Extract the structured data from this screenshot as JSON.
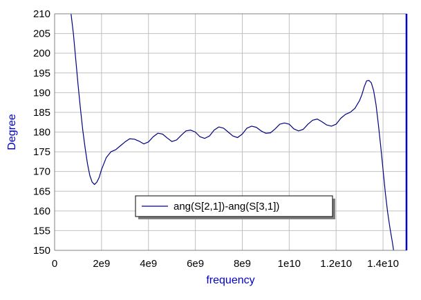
{
  "chart_data": {
    "type": "line",
    "xlabel": "frequency",
    "ylabel": "Degree",
    "xlim": [
      0,
      15000000000
    ],
    "ylim": [
      150,
      210
    ],
    "x_ticks": [
      {
        "value": 0,
        "label": "0"
      },
      {
        "value": 2000000000,
        "label": "2e9"
      },
      {
        "value": 4000000000,
        "label": "4e9"
      },
      {
        "value": 6000000000,
        "label": "6e9"
      },
      {
        "value": 8000000000,
        "label": "8e9"
      },
      {
        "value": 10000000000,
        "label": "1e10"
      },
      {
        "value": 12000000000,
        "label": "1.2e10"
      },
      {
        "value": 14000000000,
        "label": "1.4e10"
      }
    ],
    "y_ticks": [
      {
        "value": 150,
        "label": "150"
      },
      {
        "value": 155,
        "label": "155"
      },
      {
        "value": 160,
        "label": "160"
      },
      {
        "value": 165,
        "label": "165"
      },
      {
        "value": 170,
        "label": "170"
      },
      {
        "value": 175,
        "label": "175"
      },
      {
        "value": 180,
        "label": "180"
      },
      {
        "value": 185,
        "label": "185"
      },
      {
        "value": 190,
        "label": "190"
      },
      {
        "value": 195,
        "label": "195"
      },
      {
        "value": 200,
        "label": "200"
      },
      {
        "value": 205,
        "label": "205"
      },
      {
        "value": 210,
        "label": "210"
      }
    ],
    "grid": true,
    "legend_position": "lower-center",
    "series": [
      {
        "name": "ang(S[2,1])-ang(S[3,1])",
        "color": "#000080",
        "x": [
          700000000,
          800000000,
          900000000,
          1000000000,
          1100000000,
          1200000000,
          1300000000,
          1400000000,
          1500000000,
          1600000000,
          1700000000,
          1800000000,
          1900000000,
          2000000000,
          2200000000,
          2400000000,
          2600000000,
          2800000000,
          3000000000,
          3200000000,
          3400000000,
          3600000000,
          3800000000,
          4000000000,
          4200000000,
          4400000000,
          4600000000,
          4800000000,
          5000000000,
          5200000000,
          5400000000,
          5600000000,
          5800000000,
          6000000000,
          6200000000,
          6400000000,
          6600000000,
          6800000000,
          7000000000,
          7200000000,
          7400000000,
          7600000000,
          7800000000,
          8000000000,
          8200000000,
          8400000000,
          8600000000,
          8800000000,
          9000000000,
          9200000000,
          9400000000,
          9600000000,
          9800000000,
          10000000000,
          10200000000,
          10400000000,
          10600000000,
          10800000000,
          11000000000,
          11200000000,
          11400000000,
          11600000000,
          11800000000,
          12000000000,
          12200000000,
          12400000000,
          12600000000,
          12800000000,
          13000000000,
          13100000000,
          13200000000,
          13300000000,
          13400000000,
          13500000000,
          13600000000,
          13700000000,
          13800000000,
          13900000000,
          14000000000,
          14100000000,
          14200000000,
          14300000000,
          14400000000,
          14450000000
        ],
        "y": [
          210,
          205,
          198.5,
          192,
          186,
          180.5,
          176,
          172,
          169,
          167.3,
          166.7,
          167.3,
          168.5,
          170.5,
          173.5,
          175,
          175.5,
          176.5,
          177.5,
          178.3,
          178.2,
          177.7,
          177.0,
          177.5,
          178.8,
          179.7,
          179.5,
          178.5,
          177.6,
          178.0,
          179.2,
          180.3,
          180.5,
          180.0,
          178.8,
          178.4,
          179.0,
          180.5,
          181.3,
          181.0,
          180.0,
          179.0,
          178.6,
          179.5,
          181.0,
          181.5,
          181.2,
          180.3,
          179.7,
          179.8,
          180.8,
          182.0,
          182.3,
          182.0,
          180.8,
          180.3,
          180.7,
          182.0,
          183.0,
          183.3,
          182.6,
          181.8,
          181.5,
          182.0,
          183.5,
          184.5,
          185.0,
          186.0,
          188.0,
          189.5,
          191.5,
          193.0,
          193.1,
          192.5,
          190.5,
          187.0,
          182.0,
          176.5,
          170.5,
          164.5,
          159.5,
          155.5,
          152.0,
          150.0
        ]
      }
    ]
  }
}
